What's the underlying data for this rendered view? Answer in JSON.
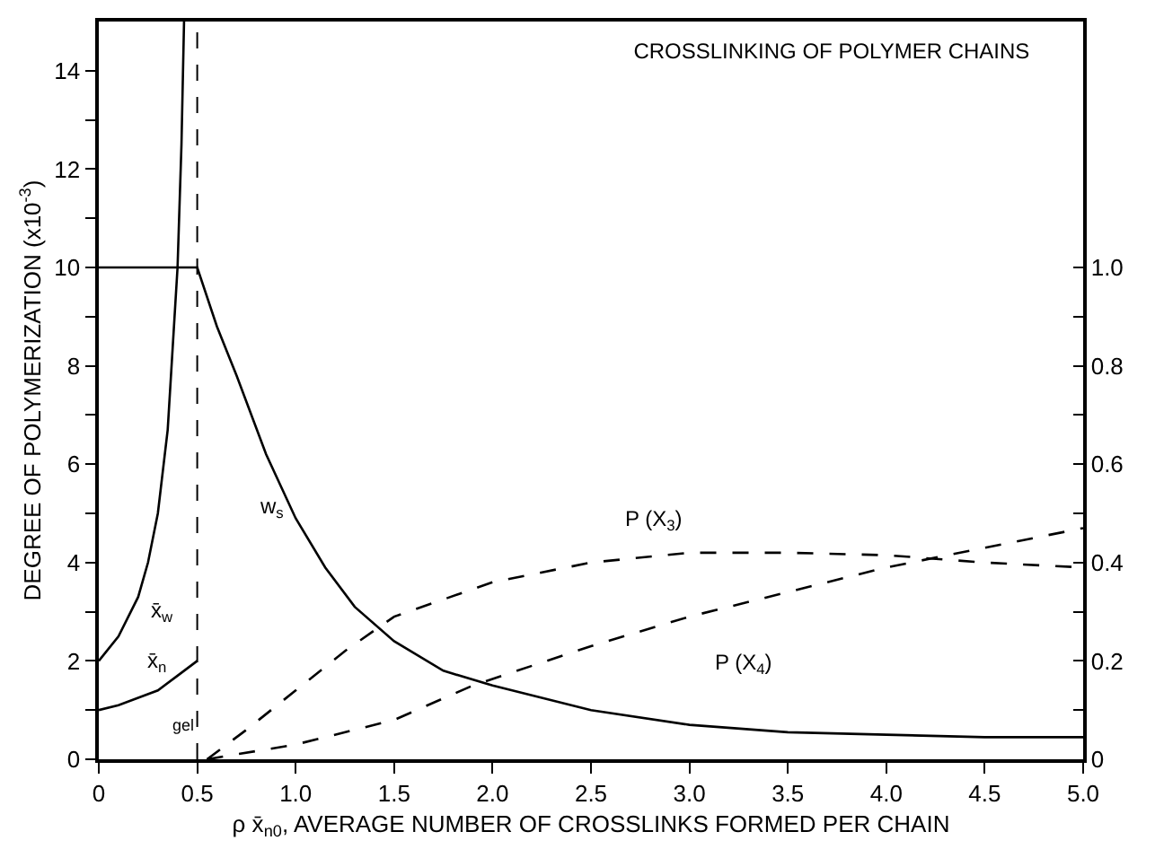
{
  "chart_data": {
    "type": "line",
    "title": "CROSSLINKING OF POLYMER CHAINS",
    "xlabel": "ρ x̄$_{n0}$, AVERAGE NUMBER OF CROSSLINKS FORMED PER CHAIN",
    "ylabel": "DEGREE OF POLYMERIZATION (x10$^{-3}$)",
    "xlim": [
      0,
      5
    ],
    "ylim": [
      0,
      15
    ],
    "y2lim": [
      0,
      1.5
    ],
    "xticks": [
      0,
      {
        "value": 0.5,
        "label": "0.5"
      },
      {
        "value": 1,
        "label": "1.0"
      },
      {
        "value": 1.5,
        "label": "1.5"
      },
      {
        "value": 2,
        "label": "2.0"
      },
      {
        "value": 2.5,
        "label": "2.5"
      },
      {
        "value": 3,
        "label": "3.0"
      },
      {
        "value": 3.5,
        "label": "3.5"
      },
      {
        "value": 4,
        "label": "4.0"
      },
      {
        "value": 4.5,
        "label": "4.5"
      },
      {
        "value": 5,
        "label": "5.0"
      }
    ],
    "yticks": [
      0,
      {
        "value": 1,
        "label": null
      },
      2,
      {
        "value": 3,
        "label": null
      },
      4,
      {
        "value": 5,
        "label": null
      },
      6,
      {
        "value": 7,
        "label": null
      },
      8,
      {
        "value": 9,
        "label": null
      },
      10,
      {
        "value": 11,
        "label": null
      },
      12,
      {
        "value": 13,
        "label": null
      },
      14
    ],
    "y2ticks": [
      0,
      {
        "value": 0.1,
        "label": null
      },
      0.2,
      {
        "value": 0.3,
        "label": null
      },
      0.4,
      {
        "value": 0.5,
        "label": null
      },
      0.6,
      {
        "value": 0.7,
        "label": null
      },
      0.8,
      {
        "value": 0.9,
        "label": null
      },
      {
        "value": 1.0,
        "label": "1.0"
      }
    ],
    "grid": false,
    "legend": false,
    "marker": "none",
    "series": [
      {
        "name": "x̄$_{w}$",
        "color": "#000000",
        "line_style": "solid",
        "x": [
          0,
          0.1,
          0.2,
          0.25,
          0.3,
          0.35,
          0.4,
          0.42,
          0.433
        ],
        "values": [
          2,
          2.5,
          3.3,
          4,
          5,
          6.7,
          10,
          12.5,
          15
        ]
      },
      {
        "name": "x̄$_{n}$",
        "color": "#000000",
        "line_style": "solid",
        "x": [
          0,
          0.1,
          0.2,
          0.3,
          0.4,
          0.5
        ],
        "values": [
          1,
          1.1,
          1.25,
          1.4,
          1.7,
          2
        ]
      },
      {
        "name": "w$_{s}$",
        "color": "#000000",
        "line_style": "solid",
        "axis": "y2",
        "x": [
          0,
          0.5,
          0.6,
          0.7,
          0.85,
          1.0,
          1.15,
          1.3,
          1.5,
          1.75,
          2.0,
          2.5,
          3.0,
          3.5,
          4.0,
          4.5,
          5.0
        ],
        "values": [
          1.0,
          1.0,
          0.88,
          0.78,
          0.62,
          0.49,
          0.39,
          0.31,
          0.24,
          0.18,
          0.15,
          0.1,
          0.07,
          0.055,
          0.05,
          0.045,
          0.045
        ]
      },
      {
        "name": "P (X$_{3}$)",
        "color": "#000000",
        "line_style": "dashed",
        "axis": "y2",
        "x": [
          0.55,
          0.75,
          1.0,
          1.25,
          1.5,
          2.0,
          2.5,
          3.0,
          3.5,
          4.0,
          4.5,
          5.0
        ],
        "values": [
          0,
          0.06,
          0.14,
          0.22,
          0.29,
          0.36,
          0.4,
          0.42,
          0.42,
          0.415,
          0.4,
          0.39
        ]
      },
      {
        "name": "P (X$_{4}$)",
        "color": "#000000",
        "line_style": "dashed",
        "axis": "y2",
        "x": [
          0.55,
          1.0,
          1.5,
          1.9,
          2.5,
          3.0,
          3.5,
          4.0,
          4.5,
          5.0
        ],
        "values": [
          0,
          0.03,
          0.08,
          0.15,
          0.23,
          0.29,
          0.34,
          0.39,
          0.43,
          0.47
        ]
      }
    ],
    "ref_lines": [
      {
        "axis": "x",
        "value": 0.5,
        "label": "gel",
        "color": "#000000",
        "line_style": "dashed"
      }
    ]
  }
}
